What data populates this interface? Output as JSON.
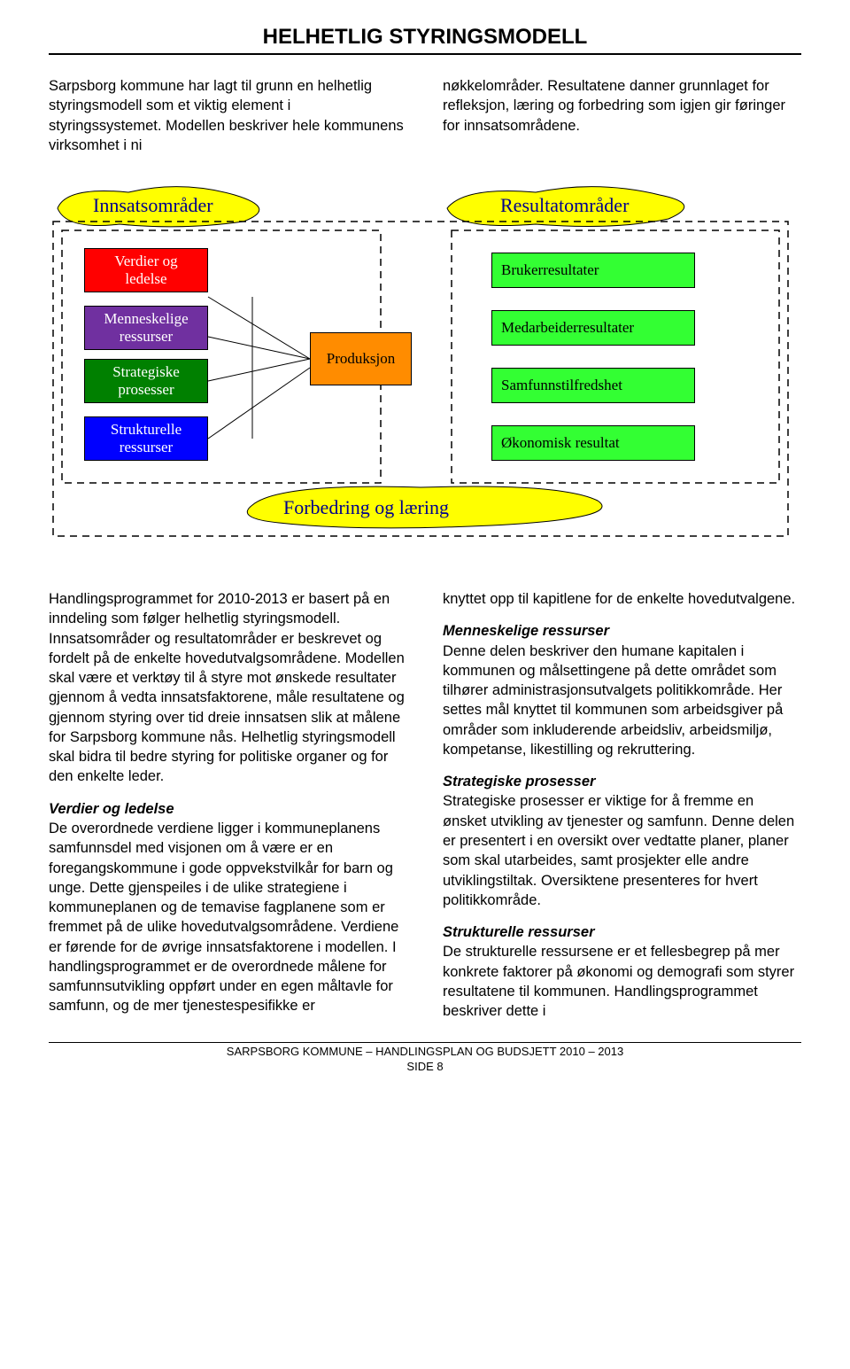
{
  "title": "HELHETLIG STYRINGSMODELL",
  "intro": {
    "left": "Sarpsborg kommune har lagt til grunn en helhetlig styringsmodell som et viktig element i styringssystemet. Modellen beskriver hele kommunens virksomhet i ni",
    "right": "nøkkelområder. Resultatene danner grunnlaget for refleksjon, læring og forbedring som igjen gir føringer for innsatsområdene."
  },
  "diagram": {
    "header_left": "Innsatsområder",
    "header_right": "Resultatområder",
    "footer": "Forbedring   og    læring",
    "produksjon": "Produksjon",
    "left_boxes": [
      {
        "label": "Verdier og\nledelse",
        "bg": "#ff0000",
        "fg": "#ffffff"
      },
      {
        "label": "Menneskelige\nressurser",
        "bg": "#7030a0",
        "fg": "#ffffff"
      },
      {
        "label": "Strategiske\nprosesser",
        "bg": "#008000",
        "fg": "#ffffff"
      },
      {
        "label": "Strukturelle\nressurser",
        "bg": "#0000ff",
        "fg": "#ffffff"
      }
    ],
    "right_boxes": [
      {
        "label": "Brukerresultater",
        "bg": "#33ff33",
        "fg": "#000000"
      },
      {
        "label": "Medarbeiderresultater",
        "bg": "#33ff33",
        "fg": "#000000"
      },
      {
        "label": "Samfunnstilfredshet",
        "bg": "#33ff33",
        "fg": "#000000"
      },
      {
        "label": "Økonomisk resultat",
        "bg": "#33ff33",
        "fg": "#000000"
      }
    ],
    "produksjon_bg": "#ff8c00",
    "produksjon_fg": "#000000",
    "cloud_color": "#ffff00",
    "dashed_box_stroke": "#000000"
  },
  "body": {
    "left": {
      "p1": "Handlingsprogrammet  for 2010-2013 er basert på en inndeling som følger helhetlig styringsmodell. Innsatsområder og resultatområder er beskrevet og fordelt  på de enkelte hovedutvalgsområdene. Modellen skal være et verktøy til å styre mot ønskede resultater gjennom å vedta innsatsfaktorene, måle resultatene og gjennom styring over tid dreie innsatsen slik at målene for Sarpsborg kommune nås. Helhetlig styringsmodell skal bidra til bedre styring for politiske organer og for den enkelte leder.",
      "h1": "Verdier og ledelse",
      "p2": "De overordnede verdiene ligger i kommuneplanens samfunnsdel med visjonen om å være er en foregangskommune i gode oppvekstvilkår for barn og unge. Dette gjenspeiles i de ulike strategiene i kommuneplanen og de temavise fagplanene som er fremmet på de ulike hovedutvalgsområdene. Verdiene er førende for de øvrige innsatsfaktorene i modellen. I handlingsprogrammet er de overordnede målene for samfunnsutvikling oppført under en egen måltavle for samfunn, og de mer tjenestespesifikke er"
    },
    "right": {
      "p1": "knyttet opp til kapitlene for de enkelte hovedutvalgene.",
      "h1": "Menneskelige ressurser",
      "p2": "Denne delen beskriver den humane kapitalen i kommunen og målsettingene på dette området som tilhører administrasjonsutvalgets politikkområde. Her settes mål knyttet til kommunen som arbeidsgiver på områder som inkluderende arbeidsliv, arbeidsmiljø, kompetanse, likestilling og rekruttering.",
      "h2": "Strategiske prosesser",
      "p3": "Strategiske prosesser er viktige for å fremme en ønsket utvikling av tjenester og samfunn. Denne delen er presentert i en oversikt over vedtatte planer, planer som skal utarbeides, samt prosjekter elle andre utviklingstiltak. Oversiktene presenteres for hvert politikkområde.",
      "h3": "Strukturelle ressurser",
      "p4": "De strukturelle ressursene er et fellesbegrep på mer konkrete faktorer på økonomi og demografi som styrer resultatene til kommunen. Handlingsprogrammet beskriver dette i"
    }
  },
  "footer": {
    "line1": "SARPSBORG KOMMUNE – HANDLINGSPLAN OG BUDSJETT 2010 – 2013",
    "line2": "SIDE 8"
  }
}
